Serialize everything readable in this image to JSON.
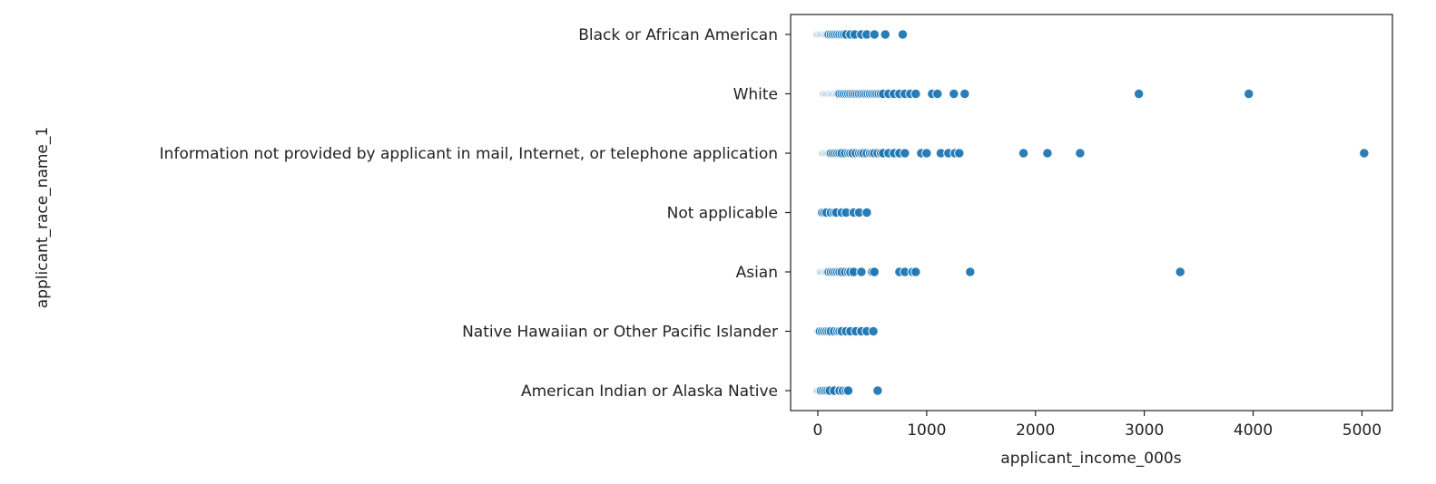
{
  "chart_data": {
    "type": "scatter",
    "title": "",
    "xlabel": "applicant_income_000s",
    "ylabel": "applicant_race_name_1",
    "xlim": [
      -250,
      5280
    ],
    "xticks": [
      0,
      1000,
      2000,
      3000,
      4000,
      5000
    ],
    "categories": [
      "Black or African American",
      "White",
      "Information not provided by applicant in mail, Internet, or telephone application",
      "Not applicable",
      "Asian",
      "Native Hawaiian or Other Pacific Islander",
      "American Indian or Alaska Native"
    ],
    "points": [
      {
        "category": "Black or African American",
        "x": [
          0,
          10,
          20,
          30,
          40,
          50,
          60,
          70,
          80,
          90,
          100,
          120,
          140,
          160,
          180,
          200,
          220,
          240,
          260,
          300,
          340,
          400,
          450,
          520,
          620,
          780
        ]
      },
      {
        "category": "White",
        "x": [
          0,
          5,
          10,
          15,
          20,
          25,
          30,
          35,
          40,
          45,
          50,
          55,
          60,
          70,
          80,
          90,
          100,
          110,
          120,
          130,
          140,
          150,
          160,
          170,
          180,
          190,
          200,
          220,
          240,
          260,
          280,
          300,
          320,
          340,
          360,
          380,
          400,
          420,
          440,
          460,
          480,
          500,
          520,
          540,
          560,
          580,
          600,
          650,
          700,
          750,
          800,
          850,
          900,
          1050,
          1100,
          1250,
          1350,
          2950,
          3960
        ]
      },
      {
        "category": "Information not provided by applicant in mail, Internet, or telephone application",
        "x": [
          0,
          5,
          10,
          15,
          20,
          25,
          30,
          35,
          40,
          45,
          50,
          60,
          70,
          80,
          90,
          100,
          110,
          120,
          140,
          160,
          180,
          200,
          220,
          250,
          280,
          300,
          320,
          350,
          380,
          400,
          420,
          450,
          480,
          500,
          520,
          550,
          580,
          600,
          650,
          700,
          750,
          800,
          950,
          1000,
          1130,
          1200,
          1260,
          1300,
          1890,
          2110,
          2410,
          5020
        ]
      },
      {
        "category": "Not applicable",
        "x": [
          40,
          60,
          80,
          120,
          150,
          170,
          220,
          260,
          330,
          380,
          450
        ]
      },
      {
        "category": "Asian",
        "x": [
          0,
          5,
          10,
          15,
          20,
          25,
          30,
          40,
          50,
          60,
          70,
          80,
          90,
          100,
          120,
          140,
          160,
          180,
          200,
          220,
          250,
          280,
          300,
          330,
          400,
          500,
          520,
          750,
          800,
          870,
          900,
          1400,
          3330
        ]
      },
      {
        "category": "Native Hawaiian or Other Pacific Islander",
        "x": [
          10,
          20,
          40,
          60,
          80,
          100,
          120,
          150,
          180,
          200,
          220,
          260,
          300,
          350,
          400,
          450,
          510
        ]
      },
      {
        "category": "American Indian or Alaska Native",
        "x": [
          0,
          10,
          20,
          30,
          50,
          70,
          90,
          110,
          150,
          200,
          230,
          260,
          280,
          550
        ]
      }
    ],
    "grid": false,
    "legend": "none",
    "colors": {
      "marker": "#1f77b4",
      "marker_edge": "#ffffff",
      "axes": "#222222",
      "text": "#222222"
    }
  }
}
